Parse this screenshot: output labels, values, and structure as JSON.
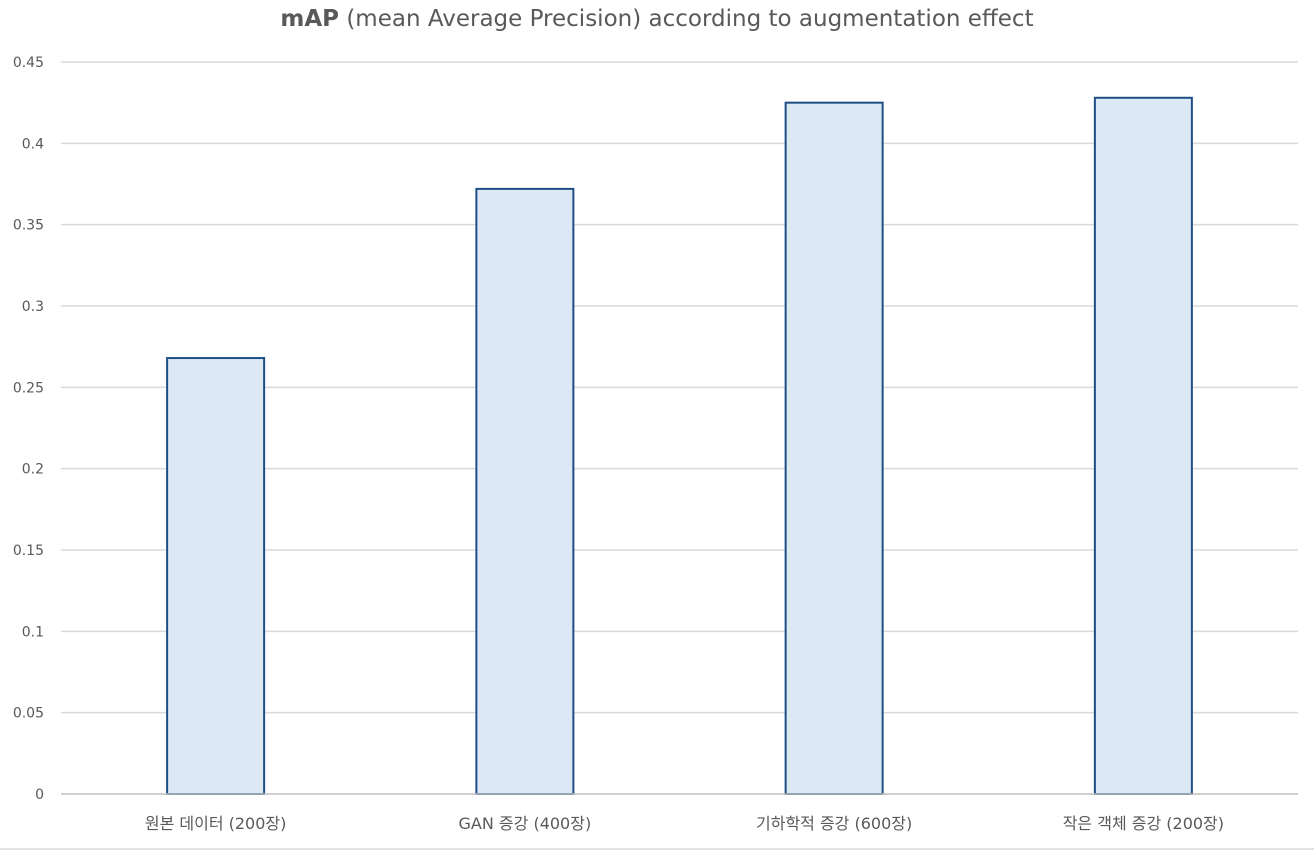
{
  "chart_data": {
    "type": "bar",
    "title_bold": "mAP",
    "title_rest": " (mean Average Precision) according to augmentation effect",
    "xlabel": "",
    "ylabel": "",
    "categories": [
      "원본 데이터 (200장)",
      "GAN 증강 (400장)",
      "기하학적 증강 (600장)",
      "작은 객체 증강 (200장)"
    ],
    "series": [
      {
        "values": [
          0.268,
          0.372,
          0.425,
          0.428
        ]
      }
    ],
    "ylim": [
      0,
      0.45
    ],
    "yticks": [
      "0",
      "0.05",
      "0.1",
      "0.15",
      "0.2",
      "0.25",
      "0.3",
      "0.35",
      "0.4",
      "0.45"
    ],
    "grid": true,
    "legend": "none",
    "colors": {
      "bar_fill": "#dde8f5",
      "bar_stroke": "#1f4e85",
      "grid": "#d9d9d9",
      "axis": "#bfbfbf",
      "text": "#595959"
    }
  }
}
